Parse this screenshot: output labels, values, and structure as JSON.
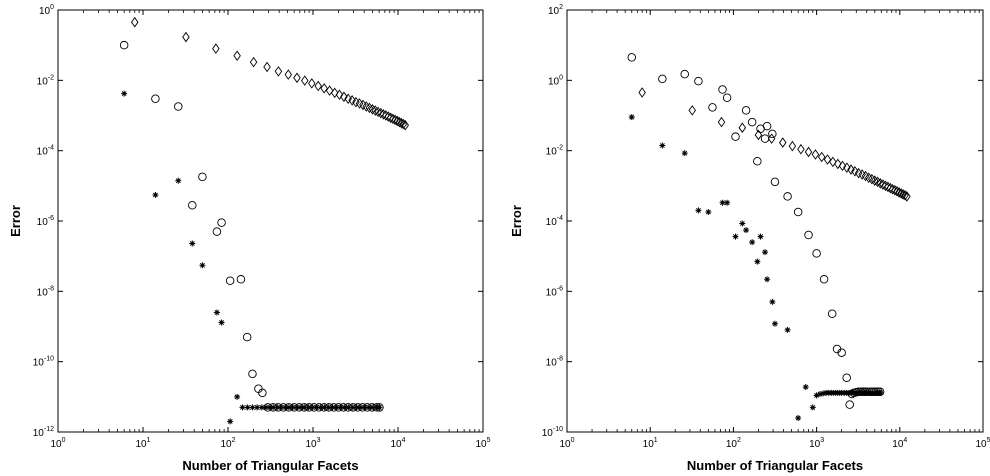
{
  "chart_data": [
    {
      "type": "scatter",
      "xlabel": "Number of Triangular Facets",
      "ylabel": "Error",
      "xscale": "log",
      "yscale": "log",
      "xlim_exp": [
        0,
        5
      ],
      "ylim_exp": [
        -12,
        0
      ],
      "grid": false,
      "series": [
        {
          "marker": "diamond",
          "points": [
            [
              8,
              0.45
            ],
            [
              32,
              0.17
            ],
            [
              72,
              0.08
            ],
            [
              128,
              0.05
            ],
            [
              200,
              0.033
            ],
            [
              288,
              0.024
            ],
            [
              392,
              0.018
            ],
            [
              512,
              0.0145
            ],
            [
              648,
              0.0118
            ],
            [
              800,
              0.0098
            ],
            [
              968,
              0.0082
            ],
            [
              1152,
              0.0069
            ],
            [
              1352,
              0.0059
            ],
            [
              1568,
              0.0051
            ],
            [
              1800,
              0.0044
            ],
            [
              2048,
              0.0039
            ],
            [
              2312,
              0.0034
            ],
            [
              2592,
              0.003
            ],
            [
              2888,
              0.0027
            ],
            [
              3200,
              0.0024
            ],
            [
              3528,
              0.0022
            ],
            [
              3872,
              0.002
            ],
            [
              4232,
              0.0018
            ],
            [
              4608,
              0.00165
            ],
            [
              5000,
              0.0015
            ],
            [
              5408,
              0.00138
            ],
            [
              5832,
              0.00127
            ],
            [
              6272,
              0.00117
            ],
            [
              6728,
              0.00108
            ],
            [
              7200,
              0.001
            ],
            [
              7688,
              0.00093
            ],
            [
              8192,
              0.00086
            ],
            [
              8712,
              0.0008
            ],
            [
              9248,
              0.00075
            ],
            [
              9800,
              0.0007
            ],
            [
              10368,
              0.00065
            ],
            [
              10952,
              0.00061
            ],
            [
              11552,
              0.00057
            ],
            [
              12168,
              0.00053
            ]
          ]
        },
        {
          "marker": "circle",
          "points": [
            [
              6,
              0.1
            ],
            [
              14,
              0.003
            ],
            [
              26,
              0.0018
            ],
            [
              38,
              2.8e-06
            ],
            [
              50,
              1.8e-05
            ],
            [
              74,
              5e-07
            ],
            [
              84,
              9e-07
            ],
            [
              106,
              2e-08
            ],
            [
              142,
              2.2e-08
            ],
            [
              168,
              5e-10
            ],
            [
              194,
              4.5e-11
            ],
            [
              228,
              1.7e-11
            ],
            [
              254,
              1.3e-11
            ],
            [
              294,
              5e-12
            ],
            [
              340,
              5e-12
            ],
            [
              390,
              5e-12
            ],
            [
              450,
              5e-12
            ],
            [
              520,
              5e-12
            ],
            [
              600,
              5e-12
            ],
            [
              690,
              5e-12
            ],
            [
              790,
              5e-12
            ],
            [
              900,
              5e-12
            ],
            [
              1030,
              5e-12
            ],
            [
              1180,
              5e-12
            ],
            [
              1350,
              5e-12
            ],
            [
              1540,
              5e-12
            ],
            [
              1760,
              5e-12
            ],
            [
              2000,
              5e-12
            ],
            [
              2280,
              5e-12
            ],
            [
              2600,
              5e-12
            ],
            [
              2960,
              5e-12
            ],
            [
              3370,
              5e-12
            ],
            [
              3830,
              5e-12
            ],
            [
              4350,
              5e-12
            ],
            [
              4950,
              5e-12
            ],
            [
              5620,
              5e-12
            ],
            [
              6050,
              5e-12
            ]
          ]
        },
        {
          "marker": "asterisk",
          "points": [
            [
              6,
              0.0042
            ],
            [
              14,
              5.5e-06
            ],
            [
              26,
              1.4e-05
            ],
            [
              38,
              2.3e-07
            ],
            [
              50,
              5.5e-08
            ],
            [
              74,
              2.5e-09
            ],
            [
              84,
              1.3e-09
            ],
            [
              106,
              2e-12
            ],
            [
              128,
              1e-11
            ],
            [
              148,
              5e-12
            ],
            [
              170,
              5e-12
            ],
            [
              194,
              5e-12
            ],
            [
              220,
              5e-12
            ],
            [
              250,
              5e-12
            ],
            [
              280,
              5e-12
            ],
            [
              310,
              5e-12
            ],
            [
              340,
              5e-12
            ],
            [
              380,
              5e-12
            ],
            [
              420,
              5e-12
            ],
            [
              470,
              5e-12
            ],
            [
              520,
              5e-12
            ],
            [
              580,
              5e-12
            ],
            [
              650,
              5e-12
            ],
            [
              720,
              5e-12
            ],
            [
              800,
              5e-12
            ],
            [
              890,
              5e-12
            ],
            [
              990,
              5e-12
            ],
            [
              1100,
              5e-12
            ],
            [
              1230,
              5e-12
            ],
            [
              1370,
              5e-12
            ],
            [
              1530,
              5e-12
            ],
            [
              1700,
              5e-12
            ],
            [
              1900,
              5e-12
            ],
            [
              2120,
              5e-12
            ],
            [
              2360,
              5e-12
            ],
            [
              2630,
              5e-12
            ],
            [
              2940,
              5e-12
            ],
            [
              3280,
              5e-12
            ],
            [
              3660,
              5e-12
            ],
            [
              4080,
              5e-12
            ],
            [
              4550,
              5e-12
            ],
            [
              5080,
              5e-12
            ],
            [
              5660,
              5e-12
            ],
            [
              6050,
              5e-12
            ]
          ]
        }
      ]
    },
    {
      "type": "scatter",
      "xlabel": "Number of Triangular Facets",
      "ylabel": "Error",
      "xscale": "log",
      "yscale": "log",
      "xlim_exp": [
        0,
        5
      ],
      "ylim_exp": [
        -10,
        2
      ],
      "grid": false,
      "series": [
        {
          "marker": "diamond",
          "points": [
            [
              8,
              0.45
            ],
            [
              32,
              0.14
            ],
            [
              72,
              0.065
            ],
            [
              128,
              0.045
            ],
            [
              200,
              0.028
            ],
            [
              288,
              0.022
            ],
            [
              392,
              0.017
            ],
            [
              512,
              0.0135
            ],
            [
              648,
              0.011
            ],
            [
              800,
              0.0092
            ],
            [
              968,
              0.0078
            ],
            [
              1152,
              0.0066
            ],
            [
              1352,
              0.0056
            ],
            [
              1568,
              0.0048
            ],
            [
              1800,
              0.0042
            ],
            [
              2048,
              0.0037
            ],
            [
              2312,
              0.0033
            ],
            [
              2592,
              0.0029
            ],
            [
              2888,
              0.0026
            ],
            [
              3200,
              0.0023
            ],
            [
              3528,
              0.0021
            ],
            [
              3872,
              0.0019
            ],
            [
              4232,
              0.0017
            ],
            [
              4608,
              0.00155
            ],
            [
              5000,
              0.0014
            ],
            [
              5408,
              0.0013
            ],
            [
              5832,
              0.00118
            ],
            [
              6272,
              0.00108
            ],
            [
              6728,
              0.001
            ],
            [
              7200,
              0.00093
            ],
            [
              7688,
              0.00086
            ],
            [
              8192,
              0.0008
            ],
            [
              8712,
              0.00075
            ],
            [
              9248,
              0.0007
            ],
            [
              9800,
              0.00065
            ],
            [
              10368,
              0.00061
            ],
            [
              10952,
              0.00057
            ],
            [
              11552,
              0.00054
            ],
            [
              12168,
              0.0005
            ]
          ]
        },
        {
          "marker": "circle",
          "points": [
            [
              6,
              4.5
            ],
            [
              14,
              1.1
            ],
            [
              26,
              1.5
            ],
            [
              38,
              0.95
            ],
            [
              56,
              0.17
            ],
            [
              74,
              0.55
            ],
            [
              84,
              0.32
            ],
            [
              106,
              0.025
            ],
            [
              142,
              0.14
            ],
            [
              168,
              0.065
            ],
            [
              194,
              0.005
            ],
            [
              212,
              0.042
            ],
            [
              240,
              0.022
            ],
            [
              254,
              0.05
            ],
            [
              294,
              0.03
            ],
            [
              316,
              0.0013
            ],
            [
              448,
              0.0005
            ],
            [
              600,
              0.00018
            ],
            [
              800,
              4e-05
            ],
            [
              1000,
              1.2e-05
            ],
            [
              1230,
              2.2e-06
            ],
            [
              1540,
              2.3e-07
            ],
            [
              1760,
              2.3e-08
            ],
            [
              2000,
              1.8e-08
            ],
            [
              2300,
              3.5e-09
            ],
            [
              2500,
              6e-10
            ],
            [
              2650,
              1.2e-09
            ],
            [
              2800,
              1.3e-09
            ],
            [
              3000,
              1.35e-09
            ],
            [
              3200,
              1.4e-09
            ],
            [
              3400,
              1.4e-09
            ],
            [
              3600,
              1.4e-09
            ],
            [
              3800,
              1.4e-09
            ],
            [
              4000,
              1.4e-09
            ],
            [
              4300,
              1.4e-09
            ],
            [
              4600,
              1.4e-09
            ],
            [
              4900,
              1.4e-09
            ],
            [
              5200,
              1.4e-09
            ],
            [
              5500,
              1.4e-09
            ],
            [
              5800,
              1.4e-09
            ]
          ]
        },
        {
          "marker": "asterisk",
          "points": [
            [
              6,
              0.09
            ],
            [
              14,
              0.014
            ],
            [
              26,
              0.0085
            ],
            [
              38,
              0.0002
            ],
            [
              50,
              0.00018
            ],
            [
              74,
              0.00033
            ],
            [
              84,
              0.00033
            ],
            [
              106,
              3.6e-05
            ],
            [
              128,
              8.5e-05
            ],
            [
              142,
              5.5e-05
            ],
            [
              168,
              2.5e-05
            ],
            [
              194,
              7e-06
            ],
            [
              212,
              3.6e-05
            ],
            [
              240,
              1.3e-05
            ],
            [
              254,
              2.2e-06
            ],
            [
              294,
              5e-07
            ],
            [
              316,
              1.2e-07
            ],
            [
              448,
              8e-08
            ],
            [
              600,
              2.5e-10
            ],
            [
              740,
              1.9e-09
            ],
            [
              900,
              5e-10
            ],
            [
              1000,
              1.1e-09
            ],
            [
              1100,
              1.2e-09
            ],
            [
              1200,
              1.25e-09
            ],
            [
              1300,
              1.3e-09
            ],
            [
              1400,
              1.3e-09
            ],
            [
              1500,
              1.3e-09
            ],
            [
              1600,
              1.3e-09
            ],
            [
              1700,
              1.3e-09
            ],
            [
              1800,
              1.3e-09
            ],
            [
              1900,
              1.3e-09
            ],
            [
              2000,
              1.3e-09
            ],
            [
              2150,
              1.3e-09
            ],
            [
              2300,
              1.3e-09
            ],
            [
              2450,
              1.3e-09
            ],
            [
              2600,
              1.3e-09
            ],
            [
              2750,
              1.3e-09
            ],
            [
              2900,
              1.3e-09
            ],
            [
              3050,
              1.3e-09
            ],
            [
              3200,
              1.3e-09
            ],
            [
              3400,
              1.3e-09
            ],
            [
              3600,
              1.3e-09
            ],
            [
              3800,
              1.3e-09
            ],
            [
              4000,
              1.3e-09
            ],
            [
              4250,
              1.3e-09
            ],
            [
              4500,
              1.3e-09
            ],
            [
              4750,
              1.3e-09
            ],
            [
              5000,
              1.3e-09
            ],
            [
              5300,
              1.3e-09
            ],
            [
              5600,
              1.3e-09
            ],
            [
              5900,
              1.3e-09
            ]
          ]
        }
      ]
    }
  ]
}
